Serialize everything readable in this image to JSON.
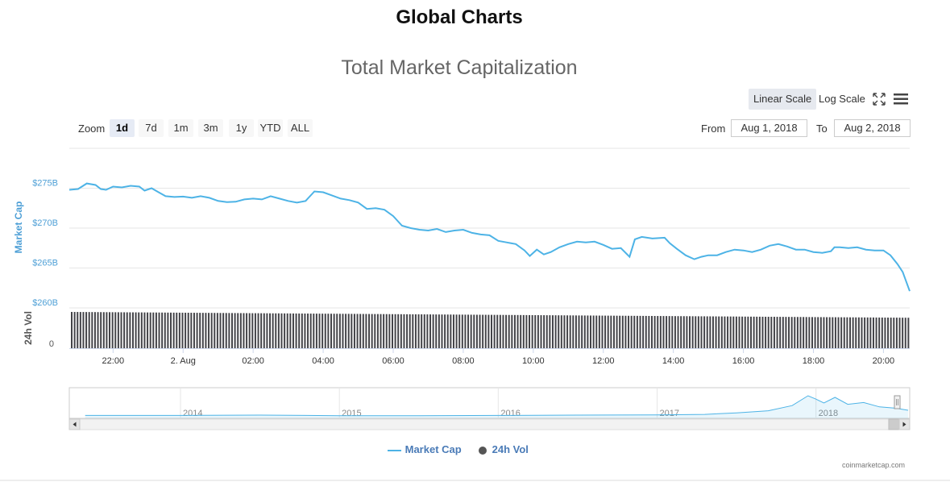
{
  "page_title": "Global Charts",
  "chart_title": "Total Market Capitalization",
  "scale_buttons": {
    "linear": "Linear Scale",
    "log": "Log Scale"
  },
  "zoom": {
    "label": "Zoom",
    "buttons": [
      "1d",
      "7d",
      "1m",
      "3m",
      "1y",
      "YTD",
      "ALL"
    ],
    "active": "1d"
  },
  "range": {
    "from_label": "From",
    "from_value": "Aug 1, 2018",
    "to_label": "To",
    "to_value": "Aug 2, 2018"
  },
  "legend": {
    "market_cap": "Market Cap",
    "volume": "24h Vol"
  },
  "credit": "coinmarketcap.com",
  "colors": {
    "line": "#4db3e6",
    "axis_label": "#4d9fd6",
    "bars": "#434348",
    "legend_text": "#4a7bb7"
  },
  "chart_data": [
    {
      "type": "line",
      "name": "Market Cap",
      "ylabel": "Market Cap",
      "ylim": [
        260,
        280
      ],
      "y_ticks": [
        {
          "value": 260,
          "label": "$260B"
        },
        {
          "value": 265,
          "label": "$265B"
        },
        {
          "value": 270,
          "label": "$270B"
        },
        {
          "value": 275,
          "label": "$275B"
        }
      ],
      "x_range_hours": [
        20.75,
        44.75
      ],
      "x_ticks": [
        {
          "t": 22,
          "label": "22:00"
        },
        {
          "t": 24,
          "label": "2. Aug"
        },
        {
          "t": 26,
          "label": "02:00"
        },
        {
          "t": 28,
          "label": "04:00"
        },
        {
          "t": 30,
          "label": "06:00"
        },
        {
          "t": 32,
          "label": "08:00"
        },
        {
          "t": 34,
          "label": "10:00"
        },
        {
          "t": 36,
          "label": "12:00"
        },
        {
          "t": 38,
          "label": "14:00"
        },
        {
          "t": 40,
          "label": "16:00"
        },
        {
          "t": 42,
          "label": "18:00"
        },
        {
          "t": 44,
          "label": "20:00"
        }
      ],
      "points": [
        [
          20.75,
          274.8
        ],
        [
          21.0,
          274.9
        ],
        [
          21.25,
          275.6
        ],
        [
          21.5,
          275.4
        ],
        [
          21.65,
          274.9
        ],
        [
          21.8,
          274.8
        ],
        [
          22.0,
          275.2
        ],
        [
          22.25,
          275.1
        ],
        [
          22.5,
          275.3
        ],
        [
          22.75,
          275.2
        ],
        [
          22.9,
          274.7
        ],
        [
          23.1,
          275.0
        ],
        [
          23.3,
          274.5
        ],
        [
          23.5,
          274.0
        ],
        [
          23.75,
          273.9
        ],
        [
          24.0,
          273.95
        ],
        [
          24.25,
          273.8
        ],
        [
          24.5,
          274.0
        ],
        [
          24.75,
          273.8
        ],
        [
          25.0,
          273.4
        ],
        [
          25.25,
          273.25
        ],
        [
          25.5,
          273.3
        ],
        [
          25.75,
          273.6
        ],
        [
          26.0,
          273.7
        ],
        [
          26.25,
          273.6
        ],
        [
          26.5,
          274.0
        ],
        [
          26.75,
          273.7
        ],
        [
          27.0,
          273.4
        ],
        [
          27.25,
          273.2
        ],
        [
          27.5,
          273.4
        ],
        [
          27.75,
          274.6
        ],
        [
          28.0,
          274.5
        ],
        [
          28.25,
          274.1
        ],
        [
          28.5,
          273.7
        ],
        [
          28.75,
          273.5
        ],
        [
          29.0,
          273.2
        ],
        [
          29.25,
          272.4
        ],
        [
          29.5,
          272.5
        ],
        [
          29.75,
          272.3
        ],
        [
          30.0,
          271.5
        ],
        [
          30.25,
          270.3
        ],
        [
          30.5,
          270.0
        ],
        [
          30.75,
          269.8
        ],
        [
          31.0,
          269.7
        ],
        [
          31.25,
          269.9
        ],
        [
          31.5,
          269.5
        ],
        [
          31.75,
          269.7
        ],
        [
          32.0,
          269.8
        ],
        [
          32.25,
          269.4
        ],
        [
          32.5,
          269.2
        ],
        [
          32.75,
          269.1
        ],
        [
          33.0,
          268.4
        ],
        [
          33.25,
          268.2
        ],
        [
          33.5,
          268.0
        ],
        [
          33.75,
          267.2
        ],
        [
          33.9,
          266.5
        ],
        [
          34.1,
          267.3
        ],
        [
          34.3,
          266.7
        ],
        [
          34.5,
          267.0
        ],
        [
          34.75,
          267.6
        ],
        [
          35.0,
          268.0
        ],
        [
          35.25,
          268.3
        ],
        [
          35.5,
          268.2
        ],
        [
          35.75,
          268.3
        ],
        [
          36.0,
          267.9
        ],
        [
          36.25,
          267.4
        ],
        [
          36.5,
          267.5
        ],
        [
          36.75,
          266.4
        ],
        [
          36.9,
          268.6
        ],
        [
          37.1,
          268.9
        ],
        [
          37.4,
          268.7
        ],
        [
          37.75,
          268.8
        ],
        [
          37.9,
          268.1
        ],
        [
          38.1,
          267.4
        ],
        [
          38.35,
          266.6
        ],
        [
          38.6,
          266.1
        ],
        [
          38.8,
          266.4
        ],
        [
          39.0,
          266.6
        ],
        [
          39.25,
          266.6
        ],
        [
          39.5,
          267.0
        ],
        [
          39.75,
          267.3
        ],
        [
          40.0,
          267.2
        ],
        [
          40.25,
          267.0
        ],
        [
          40.5,
          267.3
        ],
        [
          40.75,
          267.8
        ],
        [
          41.0,
          268.0
        ],
        [
          41.25,
          267.7
        ],
        [
          41.5,
          267.3
        ],
        [
          41.75,
          267.3
        ],
        [
          42.0,
          267.0
        ],
        [
          42.25,
          266.9
        ],
        [
          42.5,
          267.1
        ],
        [
          42.6,
          267.6
        ],
        [
          42.75,
          267.6
        ],
        [
          43.0,
          267.5
        ],
        [
          43.25,
          267.6
        ],
        [
          43.5,
          267.3
        ],
        [
          43.75,
          267.2
        ],
        [
          44.0,
          267.2
        ],
        [
          44.2,
          266.6
        ],
        [
          44.4,
          265.5
        ],
        [
          44.55,
          264.5
        ],
        [
          44.75,
          262.1
        ]
      ]
    },
    {
      "type": "bar",
      "name": "24h Vol",
      "ylabel": "24h Vol",
      "y_ticks": [
        {
          "value": 0,
          "label": "0"
        }
      ],
      "note": "volume bars roughly constant, slightly decreasing over the day",
      "relative_start": 1.0,
      "relative_end": 0.84
    },
    {
      "type": "area",
      "name": "Navigator",
      "x_ticks": [
        "2014",
        "2015",
        "2016",
        "2017",
        "2018"
      ],
      "points": [
        [
          2013.4,
          0.02
        ],
        [
          2014.0,
          0.02
        ],
        [
          2014.5,
          0.03
        ],
        [
          2015.0,
          0.01
        ],
        [
          2015.5,
          0.01
        ],
        [
          2016.0,
          0.02
        ],
        [
          2016.5,
          0.03
        ],
        [
          2017.0,
          0.04
        ],
        [
          2017.3,
          0.06
        ],
        [
          2017.5,
          0.12
        ],
        [
          2017.7,
          0.2
        ],
        [
          2017.85,
          0.4
        ],
        [
          2017.95,
          0.78
        ],
        [
          2018.0,
          0.65
        ],
        [
          2018.05,
          0.5
        ],
        [
          2018.12,
          0.72
        ],
        [
          2018.2,
          0.45
        ],
        [
          2018.3,
          0.52
        ],
        [
          2018.4,
          0.35
        ],
        [
          2018.5,
          0.3
        ],
        [
          2018.58,
          0.22
        ]
      ]
    }
  ]
}
